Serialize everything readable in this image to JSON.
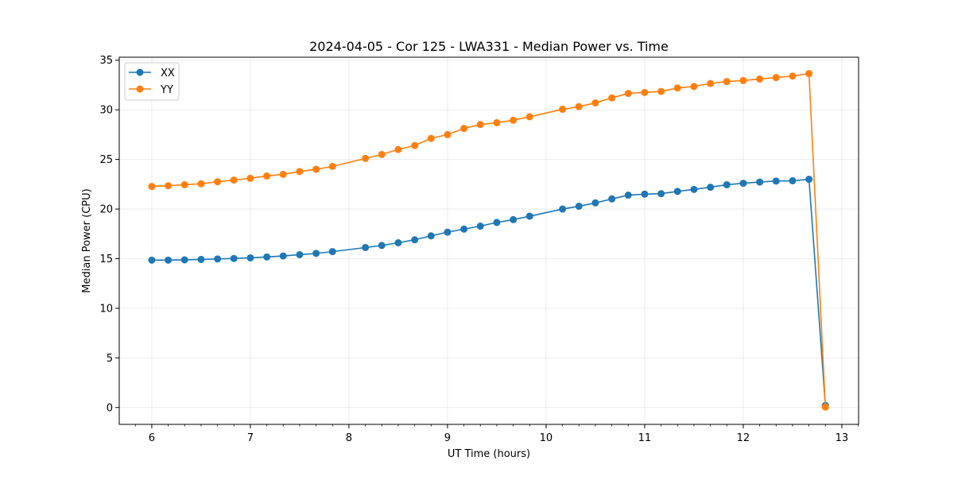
{
  "chart_data": {
    "type": "line",
    "title": "2024-04-05 - Cor 125 - LWA331 - Median Power vs. Time",
    "xlabel": "UT Time (hours)",
    "ylabel": "Median Power (CPU)",
    "xlim": [
      5.67,
      13.17
    ],
    "ylim": [
      -1.7,
      35.3
    ],
    "xticks": [
      6,
      7,
      8,
      9,
      10,
      11,
      12,
      13
    ],
    "yticks": [
      0,
      5,
      10,
      15,
      20,
      25,
      30,
      35
    ],
    "grid": true,
    "legend": "top-left",
    "x": [
      6.0,
      6.167,
      6.333,
      6.5,
      6.667,
      6.833,
      7.0,
      7.167,
      7.333,
      7.5,
      7.667,
      7.833,
      8.167,
      8.333,
      8.5,
      8.667,
      8.833,
      9.0,
      9.167,
      9.333,
      9.5,
      9.667,
      9.833,
      10.167,
      10.333,
      10.5,
      10.667,
      10.833,
      11.0,
      11.167,
      11.333,
      11.5,
      11.667,
      11.833,
      12.0,
      12.167,
      12.333,
      12.5,
      12.667,
      12.833
    ],
    "series": [
      {
        "name": "XX",
        "color": "#1f77b4",
        "values": [
          14.85,
          14.85,
          14.88,
          14.92,
          14.97,
          15.02,
          15.08,
          15.17,
          15.27,
          15.4,
          15.53,
          15.71,
          16.12,
          16.33,
          16.6,
          16.9,
          17.3,
          17.67,
          17.98,
          18.28,
          18.65,
          18.93,
          19.28,
          20.0,
          20.28,
          20.62,
          21.02,
          21.4,
          21.5,
          21.55,
          21.78,
          21.98,
          22.2,
          22.45,
          22.6,
          22.72,
          22.82,
          22.85,
          23.0,
          0.2
        ]
      },
      {
        "name": "YY",
        "color": "#ff7f0e",
        "values": [
          22.28,
          22.35,
          22.45,
          22.55,
          22.75,
          22.92,
          23.1,
          23.33,
          23.5,
          23.78,
          24.0,
          24.3,
          25.1,
          25.5,
          26.0,
          26.4,
          27.12,
          27.5,
          28.12,
          28.52,
          28.7,
          28.95,
          29.3,
          30.05,
          30.32,
          30.7,
          31.2,
          31.65,
          31.75,
          31.85,
          32.2,
          32.35,
          32.65,
          32.85,
          32.95,
          33.1,
          33.25,
          33.4,
          33.65,
          0.05
        ]
      }
    ]
  }
}
